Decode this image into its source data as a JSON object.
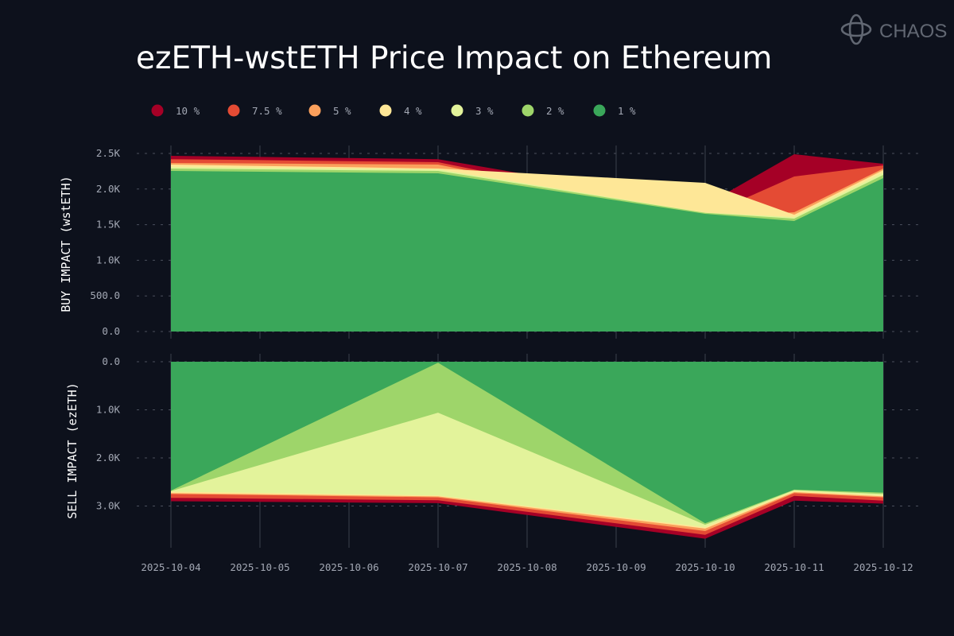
{
  "title": "ezETH-wstETH Price Impact on Ethereum",
  "logo_text": "CHAOS",
  "colors": {
    "background": "#0d111c",
    "grid": "#4a4f5c"
  },
  "chart_data": [
    {
      "type": "area",
      "title": "ezETH-wstETH Price Impact on Ethereum",
      "ylabel": "BUY IMPACT (wstETH)",
      "ylim": [
        0,
        2600
      ],
      "yticks": [
        "0.0",
        "500.0",
        "1.0K",
        "1.5K",
        "2.0K",
        "2.5K"
      ],
      "ytick_values": [
        0,
        500,
        1000,
        1500,
        2000,
        2500
      ],
      "grid": true,
      "legend": "top",
      "x": [
        "2025-10-04",
        "2025-10-05",
        "2025-10-06",
        "2025-10-07",
        "2025-10-08",
        "2025-10-09",
        "2025-10-10",
        "2025-10-11",
        "2025-10-12"
      ],
      "series": [
        {
          "name": "10 %",
          "color": "#a50026",
          "values": [
            2466,
            2451,
            2435,
            2420,
            2205,
            1990,
            1775,
            2489,
            2355
          ]
        },
        {
          "name": "7.5 %",
          "color": "#e44b34",
          "values": [
            2420,
            2406,
            2391,
            2377,
            2125,
            1872,
            1620,
            2176,
            2332
          ]
        },
        {
          "name": "5 %",
          "color": "#fba05c",
          "values": [
            2366,
            2359,
            2351,
            2344,
            2096,
            1848,
            1600,
            1674,
            2288
          ]
        },
        {
          "name": "4 %",
          "color": "#fee797",
          "values": [
            2344,
            2325,
            2307,
            2288,
            2221,
            2154,
            2087,
            1640,
            2266
          ]
        },
        {
          "name": "3 %",
          "color": "#e3f39b",
          "values": [
            2310,
            2299,
            2288,
            2277,
            2075,
            1872,
            1670,
            1607,
            2232
          ]
        },
        {
          "name": "2 %",
          "color": "#9ed56a",
          "values": [
            2288,
            2277,
            2265,
            2254,
            2058,
            1861,
            1665,
            1585,
            2199
          ]
        },
        {
          "name": "1 %",
          "color": "#3aa75a",
          "values": [
            2254,
            2243,
            2232,
            2221,
            2031,
            1842,
            1652,
            1551,
            2154
          ]
        }
      ]
    },
    {
      "type": "area",
      "ylabel": "SELL IMPACT (ezETH)",
      "ylim": [
        0,
        3850
      ],
      "inverted": true,
      "yticks": [
        "0.0",
        "1.0K",
        "2.0K",
        "3.0K"
      ],
      "ytick_values": [
        0,
        1000,
        2000,
        3000
      ],
      "grid": true,
      "x": [
        "2025-10-04",
        "2025-10-05",
        "2025-10-06",
        "2025-10-07",
        "2025-10-08",
        "2025-10-09",
        "2025-10-10",
        "2025-10-11",
        "2025-10-12"
      ],
      "series": [
        {
          "name": "10 %",
          "color": "#a50026",
          "values": [
            2900,
            2913,
            2927,
            2940,
            3187,
            3433,
            3680,
            2890,
            2950
          ]
        },
        {
          "name": "7.5 %",
          "color": "#e44b34",
          "values": [
            2830,
            2847,
            2863,
            2880,
            3120,
            3360,
            3600,
            2790,
            2890
          ]
        },
        {
          "name": "5 %",
          "color": "#fba05c",
          "values": [
            2750,
            2773,
            2797,
            2820,
            3053,
            3287,
            3520,
            2730,
            2820
          ]
        },
        {
          "name": "4 %",
          "color": "#fee797",
          "values": [
            2730,
            2753,
            2777,
            2800,
            3023,
            3247,
            3470,
            2710,
            2800
          ]
        },
        {
          "name": "3 %",
          "color": "#e3f39b",
          "values": [
            2700,
            2727,
            2753,
            2780,
            3000,
            3220,
            3440,
            2690,
            2780
          ]
        },
        {
          "name": "2 %",
          "color": "#9ed56a",
          "values": [
            2690,
            2147,
            1603,
            1060,
            1837,
            2613,
            3390,
            2670,
            2750
          ]
        },
        {
          "name": "1 %",
          "color": "#3aa75a",
          "values": [
            2680,
            1793,
            907,
            20,
            1133,
            2247,
            3360,
            2660,
            2720
          ]
        }
      ]
    }
  ]
}
